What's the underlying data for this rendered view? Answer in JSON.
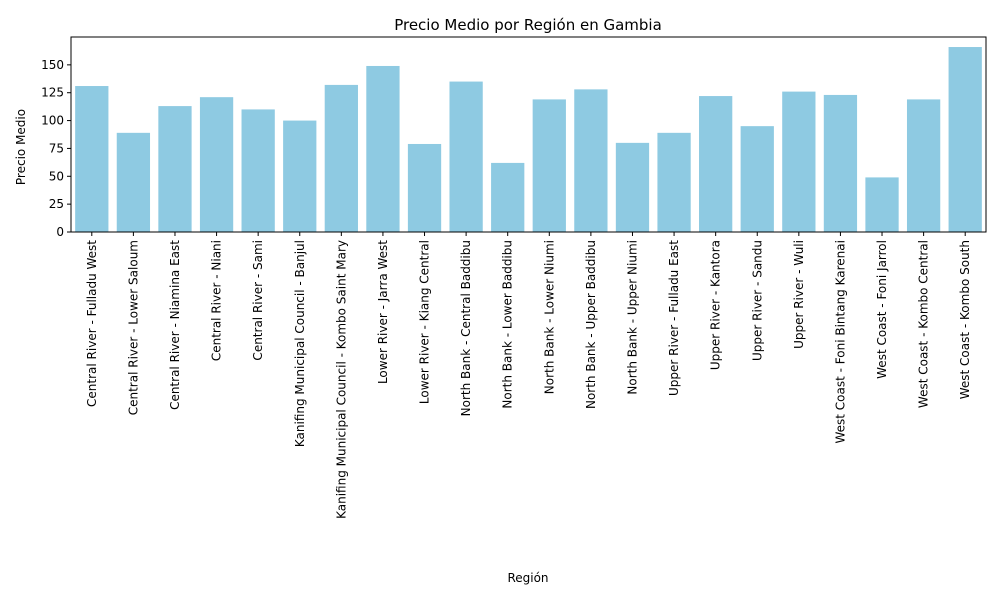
{
  "chart_data": {
    "type": "bar",
    "title": "Precio Medio por Región en Gambia",
    "xlabel": "Región",
    "ylabel": "Precio Medio",
    "ylim": [
      0,
      175
    ],
    "yticks": [
      0,
      25,
      50,
      75,
      100,
      125,
      150
    ],
    "grid": false,
    "bar_color": "#8ecae2",
    "categories": [
      "Central River - Fulladu West",
      "Central River - Lower Saloum",
      "Central River - Niamina East",
      "Central River - Niani",
      "Central River - Sami",
      "Kanifing Municipal Council - Banjul",
      "Kanifing Municipal Council - Kombo Saint Mary",
      "Lower River - Jarra West",
      "Lower River - Kiang Central",
      "North Bank - Central Baddibu",
      "North Bank - Lower Baddibu",
      "North Bank - Lower Niumi",
      "North Bank - Upper Baddibu",
      "North Bank - Upper Niumi",
      "Upper River - Fulladu East",
      "Upper River - Kantora",
      "Upper River - Sandu",
      "Upper River - Wuli",
      "West Coast - Foni Bintang Karenai",
      "West Coast - Foni Jarrol",
      "West Coast - Kombo Central",
      "West Coast - Kombo South"
    ],
    "values": [
      131,
      89,
      113,
      121,
      110,
      100,
      132,
      149,
      79,
      135,
      62,
      119,
      128,
      80,
      89,
      122,
      95,
      126,
      123,
      49,
      119,
      166
    ]
  }
}
